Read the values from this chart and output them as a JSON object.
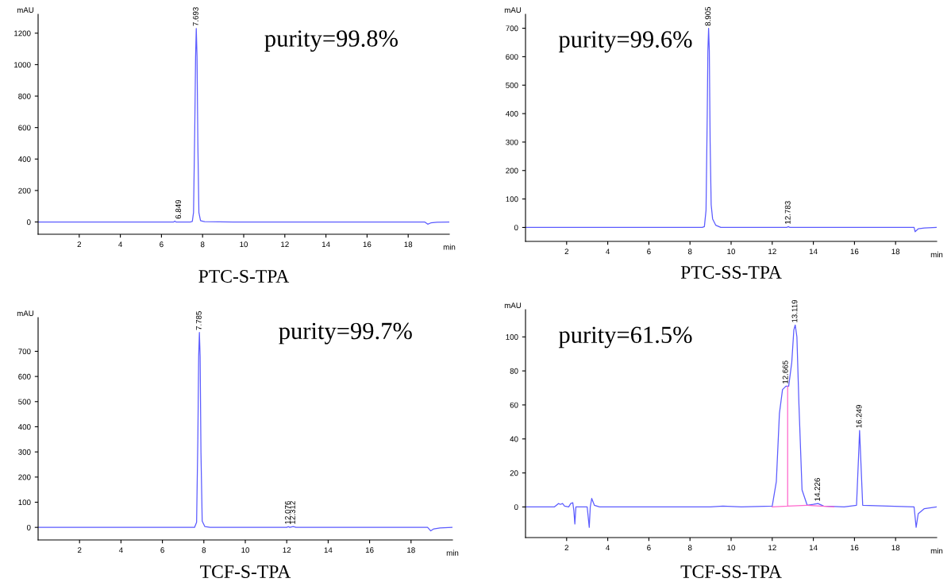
{
  "chart_data": [
    {
      "type": "line",
      "title": "PTC-S-TPA",
      "xlabel": "min",
      "ylabel": "mAU",
      "xlim": [
        0,
        20
      ],
      "ylim": [
        -78,
        1320
      ],
      "xticks": [
        2,
        4,
        6,
        8,
        10,
        12,
        14,
        16,
        18
      ],
      "yticks": [
        0,
        200,
        400,
        600,
        800,
        1000,
        1200
      ],
      "marker": "none",
      "line_style": "solid",
      "annotations": [
        "purity=99.8%",
        {
          "text": "6.849",
          "x": 6.849,
          "y": 5
        },
        {
          "text": "7.693",
          "x": 7.693,
          "y": 1230
        }
      ],
      "series": [
        {
          "color": "#5b5bff",
          "x": [
            0,
            2.3,
            6.6,
            6.65,
            6.7,
            7.4,
            7.5,
            7.56,
            7.62,
            7.66,
            7.693,
            7.73,
            7.77,
            7.82,
            7.9,
            8.1,
            9.5,
            17.0,
            18.8,
            18.95,
            19.1,
            19.4,
            20
          ],
          "values": [
            0,
            0,
            0,
            6,
            0,
            0,
            3,
            60,
            600,
            1050,
            1230,
            1050,
            500,
            60,
            8,
            2,
            0,
            0,
            0,
            -14,
            -6,
            -2,
            0
          ]
        }
      ]
    },
    {
      "type": "line",
      "title": "PTC-SS-TPA",
      "xlabel": "min",
      "ylabel": "mAU",
      "xlim": [
        0,
        20
      ],
      "ylim": [
        -49,
        749
      ],
      "xticks": [
        2,
        4,
        6,
        8,
        10,
        12,
        14,
        16,
        18
      ],
      "yticks": [
        0,
        100,
        200,
        300,
        400,
        500,
        600,
        700
      ],
      "marker": "none",
      "line_style": "solid",
      "annotations": [
        "purity=99.6%",
        {
          "text": "8.905",
          "x": 8.905,
          "y": 700
        },
        {
          "text": "12.783",
          "x": 12.783,
          "y": 3
        }
      ],
      "series": [
        {
          "color": "#5b5bff",
          "x": [
            0,
            8.6,
            8.7,
            8.78,
            8.84,
            8.87,
            8.905,
            8.94,
            8.98,
            9.03,
            9.1,
            9.25,
            9.5,
            12.7,
            12.783,
            12.86,
            17.0,
            18.9,
            18.95,
            19.1,
            19.4,
            20
          ],
          "values": [
            0,
            0,
            3,
            60,
            400,
            620,
            700,
            620,
            300,
            80,
            30,
            8,
            0,
            0,
            3,
            0,
            0,
            0,
            -15,
            -5,
            -2,
            0
          ]
        }
      ]
    },
    {
      "type": "line",
      "title": "TCF-S-TPA",
      "xlabel": "min",
      "ylabel": "mAU",
      "xlim": [
        0,
        20
      ],
      "ylim": [
        -50,
        834
      ],
      "xticks": [
        2,
        4,
        6,
        8,
        10,
        12,
        14,
        16,
        18
      ],
      "yticks": [
        0,
        100,
        200,
        300,
        400,
        500,
        600,
        700
      ],
      "marker": "none",
      "line_style": "solid",
      "annotations": [
        "purity=99.7%",
        {
          "text": "7.785",
          "x": 7.785,
          "y": 775
        },
        {
          "text": "12.076",
          "x": 12.076,
          "y": 3
        },
        {
          "text": "12.312",
          "x": 12.312,
          "y": 3
        }
      ],
      "series": [
        {
          "color": "#5b5bff",
          "x": [
            0,
            7.55,
            7.65,
            7.71,
            7.75,
            7.785,
            7.82,
            7.86,
            7.92,
            8.05,
            8.3,
            12.0,
            12.076,
            12.15,
            12.312,
            12.45,
            18.8,
            18.95,
            19.1,
            19.4,
            20
          ],
          "values": [
            0,
            0,
            20,
            350,
            680,
            775,
            680,
            300,
            25,
            3,
            0,
            0,
            3,
            0,
            3,
            0,
            0,
            -14,
            -6,
            -2,
            0
          ]
        }
      ]
    },
    {
      "type": "line",
      "title": "TCF-SS-TPA",
      "xlabel": "min",
      "ylabel": "mAU",
      "xlim": [
        0,
        20
      ],
      "ylim": [
        -18,
        116
      ],
      "xticks": [
        2,
        4,
        6,
        8,
        10,
        12,
        14,
        16,
        18
      ],
      "yticks": [
        0,
        20,
        40,
        60,
        80,
        100
      ],
      "marker": "none",
      "line_style": "solid",
      "annotations": [
        "purity=61.5%",
        {
          "text": "12.665",
          "x": 12.665,
          "y": 71
        },
        {
          "text": "13.119",
          "x": 13.119,
          "y": 107
        },
        {
          "text": "14.226",
          "x": 14.226,
          "y": 2
        },
        {
          "text": "16.249",
          "x": 16.249,
          "y": 45
        }
      ],
      "series": [
        {
          "color": "#5b5bff",
          "x": [
            0,
            1.4,
            1.6,
            1.7,
            1.8,
            1.9,
            2.1,
            2.2,
            2.3,
            2.35,
            2.4,
            2.45,
            2.6,
            3.0,
            3.1,
            3.15,
            3.22,
            3.35,
            3.6,
            4.0,
            9.0,
            9.6,
            10.5,
            12.0,
            12.2,
            12.35,
            12.5,
            12.665,
            12.8,
            12.95,
            13.05,
            13.119,
            13.2,
            13.3,
            13.45,
            13.7,
            14.0,
            14.226,
            14.5,
            15.5,
            16.1,
            16.2,
            16.249,
            16.3,
            16.4,
            18.9,
            19.0,
            19.1,
            19.4,
            20
          ],
          "values": [
            0,
            0,
            2,
            1.5,
            2,
            0.5,
            0,
            2,
            2.5,
            -2,
            -10,
            0,
            0,
            0,
            -12,
            0,
            5,
            1,
            0,
            0,
            0,
            0.5,
            0,
            0.5,
            15,
            55,
            69,
            71,
            71,
            85,
            104,
            107,
            100,
            60,
            10,
            1,
            1.5,
            2,
            0.5,
            0,
            1,
            30,
            45,
            30,
            1,
            0,
            -12,
            -4,
            -1,
            0
          ]
        },
        {
          "color": "#ff66cc",
          "x": [
            12.0,
            12.75,
            12.75,
            12.75,
            13.7,
            15.0
          ],
          "values": [
            0,
            0.5,
            71,
            0.5,
            1,
            0
          ]
        }
      ]
    }
  ]
}
